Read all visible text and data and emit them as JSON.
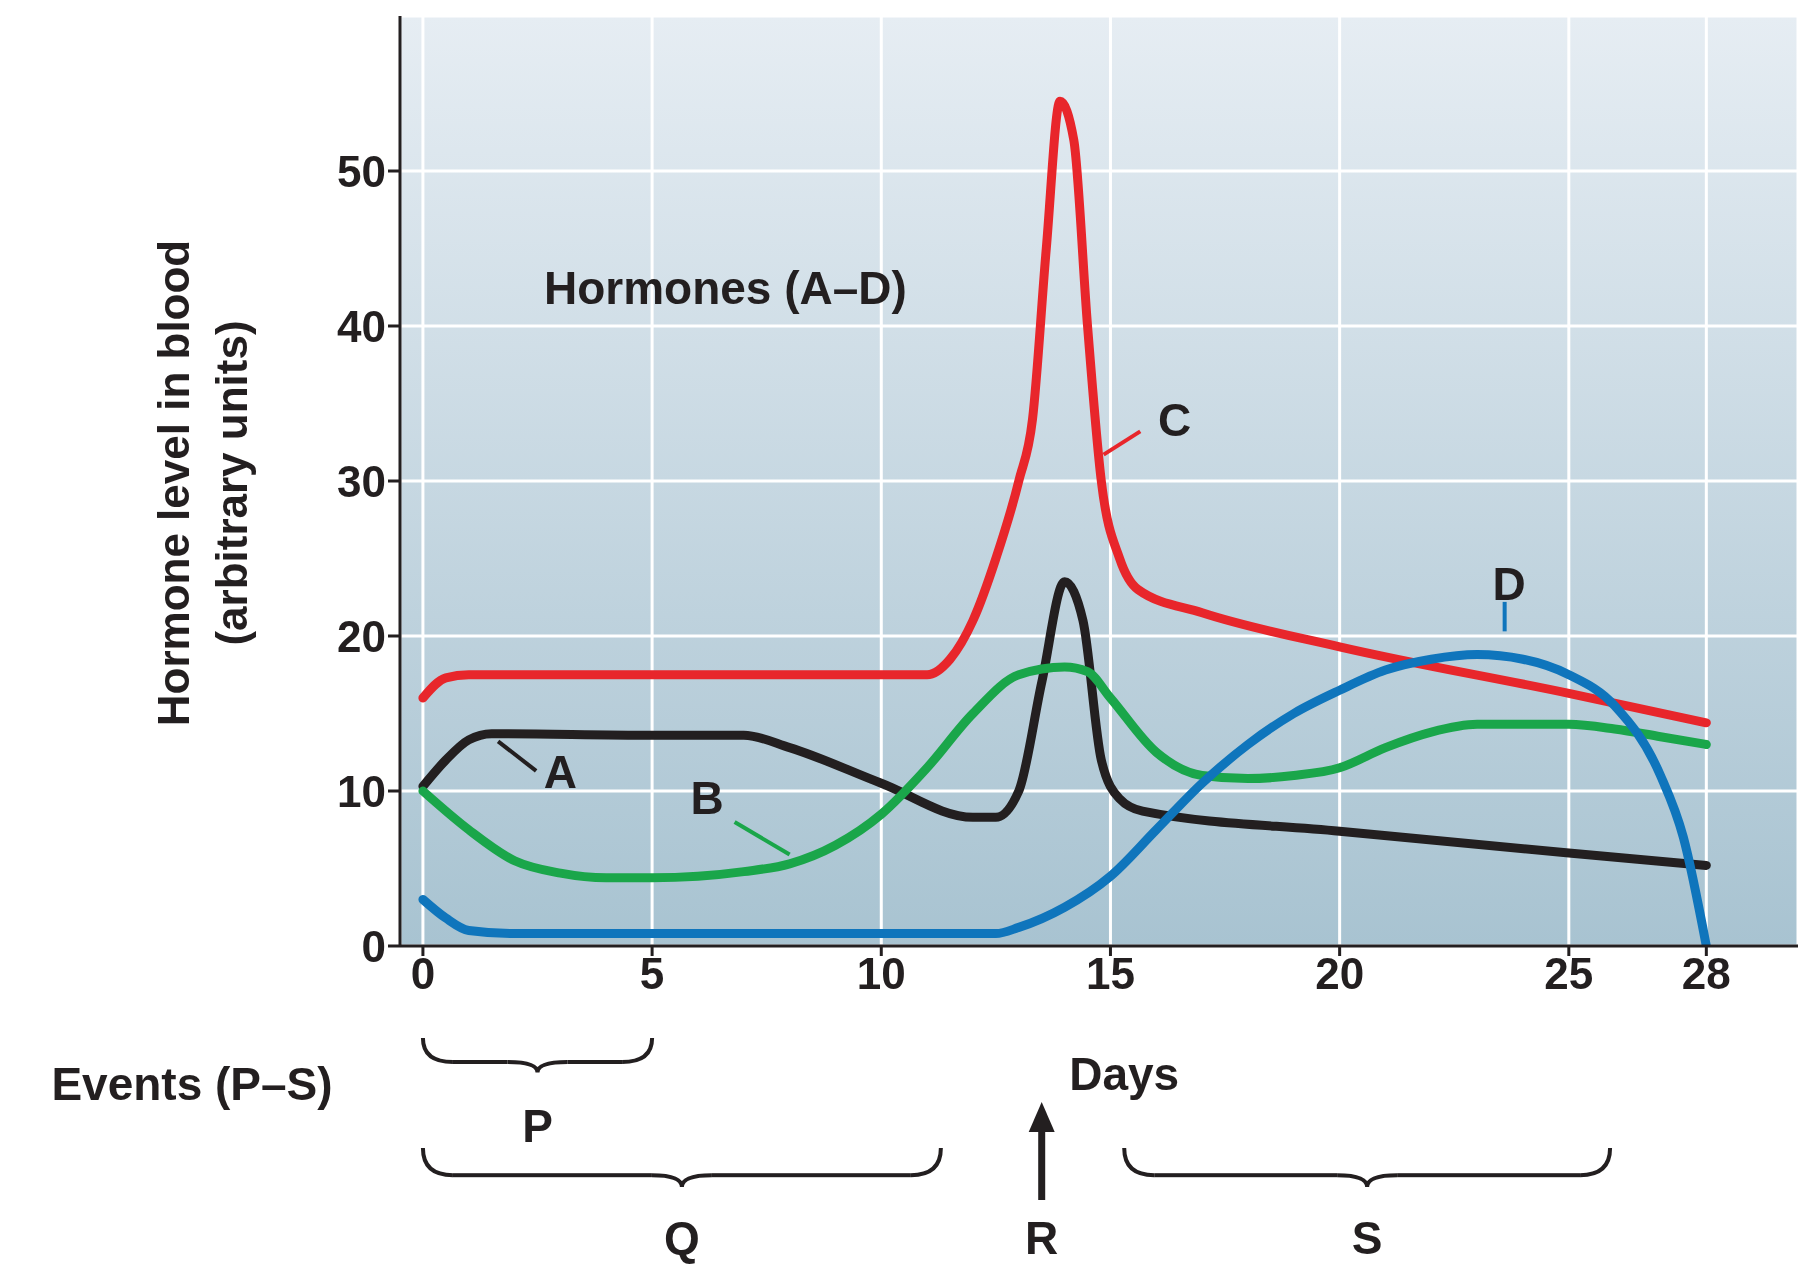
{
  "chart_data": {
    "type": "line",
    "xlabel": "Days",
    "ylabel": "Hormone level in blood (arbitrary units)",
    "annotations": [
      "Hormones (A–D)",
      "Events (P–S)",
      "P",
      "Q",
      "R",
      "S"
    ],
    "xlim": [
      -0.5,
      30
    ],
    "xticks": [
      0,
      5,
      10,
      15,
      20,
      25,
      28
    ],
    "ylim": [
      0,
      60
    ],
    "yticks": [
      0,
      10,
      20,
      30,
      40,
      50
    ],
    "grid": true,
    "legend": "left",
    "marker": "none",
    "line_style": "solid",
    "series": [
      {
        "name": "A",
        "color": "#231f20",
        "x": [
          0,
          0.5,
          1,
          1.5,
          5,
          7,
          8,
          10,
          12,
          12.5,
          13,
          13.5,
          14,
          14.4,
          14.8,
          15.2,
          15.7,
          20,
          25,
          28
        ],
        "values": [
          10.3,
          12,
          13.3,
          13.7,
          13.6,
          13.6,
          12.8,
          10.5,
          8.3,
          8.3,
          10,
          17,
          23.5,
          21,
          12,
          9.5,
          8.7,
          7.4,
          6,
          5.2
        ]
      },
      {
        "name": "B",
        "color": "#1aa64a",
        "x": [
          0,
          1,
          2,
          3,
          4,
          5,
          7,
          8,
          9,
          10,
          11,
          12,
          13,
          14,
          14.5,
          15,
          16,
          17,
          18,
          19,
          20,
          21,
          22,
          23,
          25,
          26,
          27,
          28
        ],
        "values": [
          10,
          7.5,
          5.5,
          4.7,
          4.4,
          4.4,
          4.8,
          5.3,
          6.5,
          8.5,
          11.5,
          15,
          17.5,
          18,
          17.7,
          16,
          12.5,
          11,
          10.8,
          11,
          11.5,
          12.8,
          13.8,
          14.3,
          14.3,
          14,
          13.5,
          13
        ]
      },
      {
        "name": "C",
        "color": "#e8262b",
        "x": [
          0,
          0.5,
          1,
          5,
          11,
          11.5,
          12,
          12.5,
          13,
          13.3,
          13.6,
          13.9,
          14.2,
          14.5,
          14.8,
          15.2,
          15.6,
          17,
          20,
          25,
          28
        ],
        "values": [
          16,
          17.3,
          17.5,
          17.5,
          17.5,
          18.5,
          21,
          25,
          30,
          34,
          45,
          54.5,
          52,
          40,
          30,
          25,
          23,
          21.5,
          19.3,
          16.3,
          14.4
        ]
      },
      {
        "name": "D",
        "color": "#0f75bc",
        "x": [
          0,
          0.5,
          1,
          2,
          12.5,
          13,
          14,
          15,
          16,
          17,
          18,
          19,
          20,
          21,
          22,
          23,
          24,
          25,
          26,
          27,
          27.5,
          28
        ],
        "values": [
          3,
          1.8,
          1,
          0.8,
          0.8,
          1.2,
          2.5,
          4.5,
          7.5,
          10.5,
          13,
          15,
          16.5,
          17.8,
          18.5,
          18.8,
          18.5,
          17.5,
          15.5,
          11,
          7,
          0
        ]
      }
    ]
  }
}
